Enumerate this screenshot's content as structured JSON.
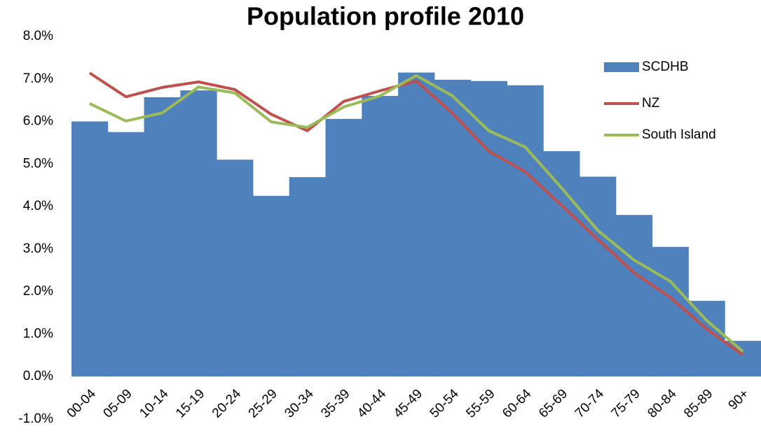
{
  "chart_data": {
    "type": "bar-line",
    "title": "Population profile 2010",
    "categories": [
      "00-04",
      "05-09",
      "10-14",
      "15-19",
      "20-24",
      "25-29",
      "30-34",
      "35-39",
      "40-44",
      "45-49",
      "50-54",
      "55-59",
      "60-64",
      "65-69",
      "70-74",
      "75-79",
      "80-84",
      "85-89",
      "90+"
    ],
    "series": [
      {
        "name": "SCDHB",
        "type": "bar",
        "color": "#4f81bd",
        "values": [
          6.0,
          5.75,
          6.57,
          6.73,
          5.1,
          4.25,
          4.69,
          6.06,
          6.6,
          7.15,
          6.98,
          6.95,
          6.85,
          5.3,
          4.7,
          3.8,
          3.05,
          1.78,
          0.84
        ]
      },
      {
        "name": "NZ",
        "type": "line",
        "color": "#c0504d",
        "values": [
          7.14,
          6.58,
          6.8,
          6.93,
          6.75,
          6.17,
          5.78,
          6.47,
          6.72,
          6.95,
          6.19,
          5.3,
          4.82,
          4.03,
          3.23,
          2.44,
          1.86,
          1.12,
          0.51
        ]
      },
      {
        "name": "South Island",
        "type": "line",
        "color": "#9bbb59",
        "values": [
          6.42,
          6.01,
          6.2,
          6.81,
          6.67,
          5.99,
          5.86,
          6.34,
          6.6,
          7.08,
          6.6,
          5.78,
          5.4,
          4.44,
          3.44,
          2.74,
          2.24,
          1.32,
          0.59
        ]
      }
    ],
    "ylim": [
      -1,
      8
    ],
    "yticks": [
      {
        "value": -1,
        "label": "-1.0%"
      },
      {
        "value": 0,
        "label": "0.0%"
      },
      {
        "value": 1,
        "label": "1.0%"
      },
      {
        "value": 2,
        "label": "2.0%"
      },
      {
        "value": 3,
        "label": "3.0%"
      },
      {
        "value": 4,
        "label": "4.0%"
      },
      {
        "value": 5,
        "label": "5.0%"
      },
      {
        "value": 6,
        "label": "6.0%"
      },
      {
        "value": 7,
        "label": "7.0%"
      },
      {
        "value": 8,
        "label": "8.0%"
      }
    ],
    "legend": "upper right",
    "grid": false
  }
}
